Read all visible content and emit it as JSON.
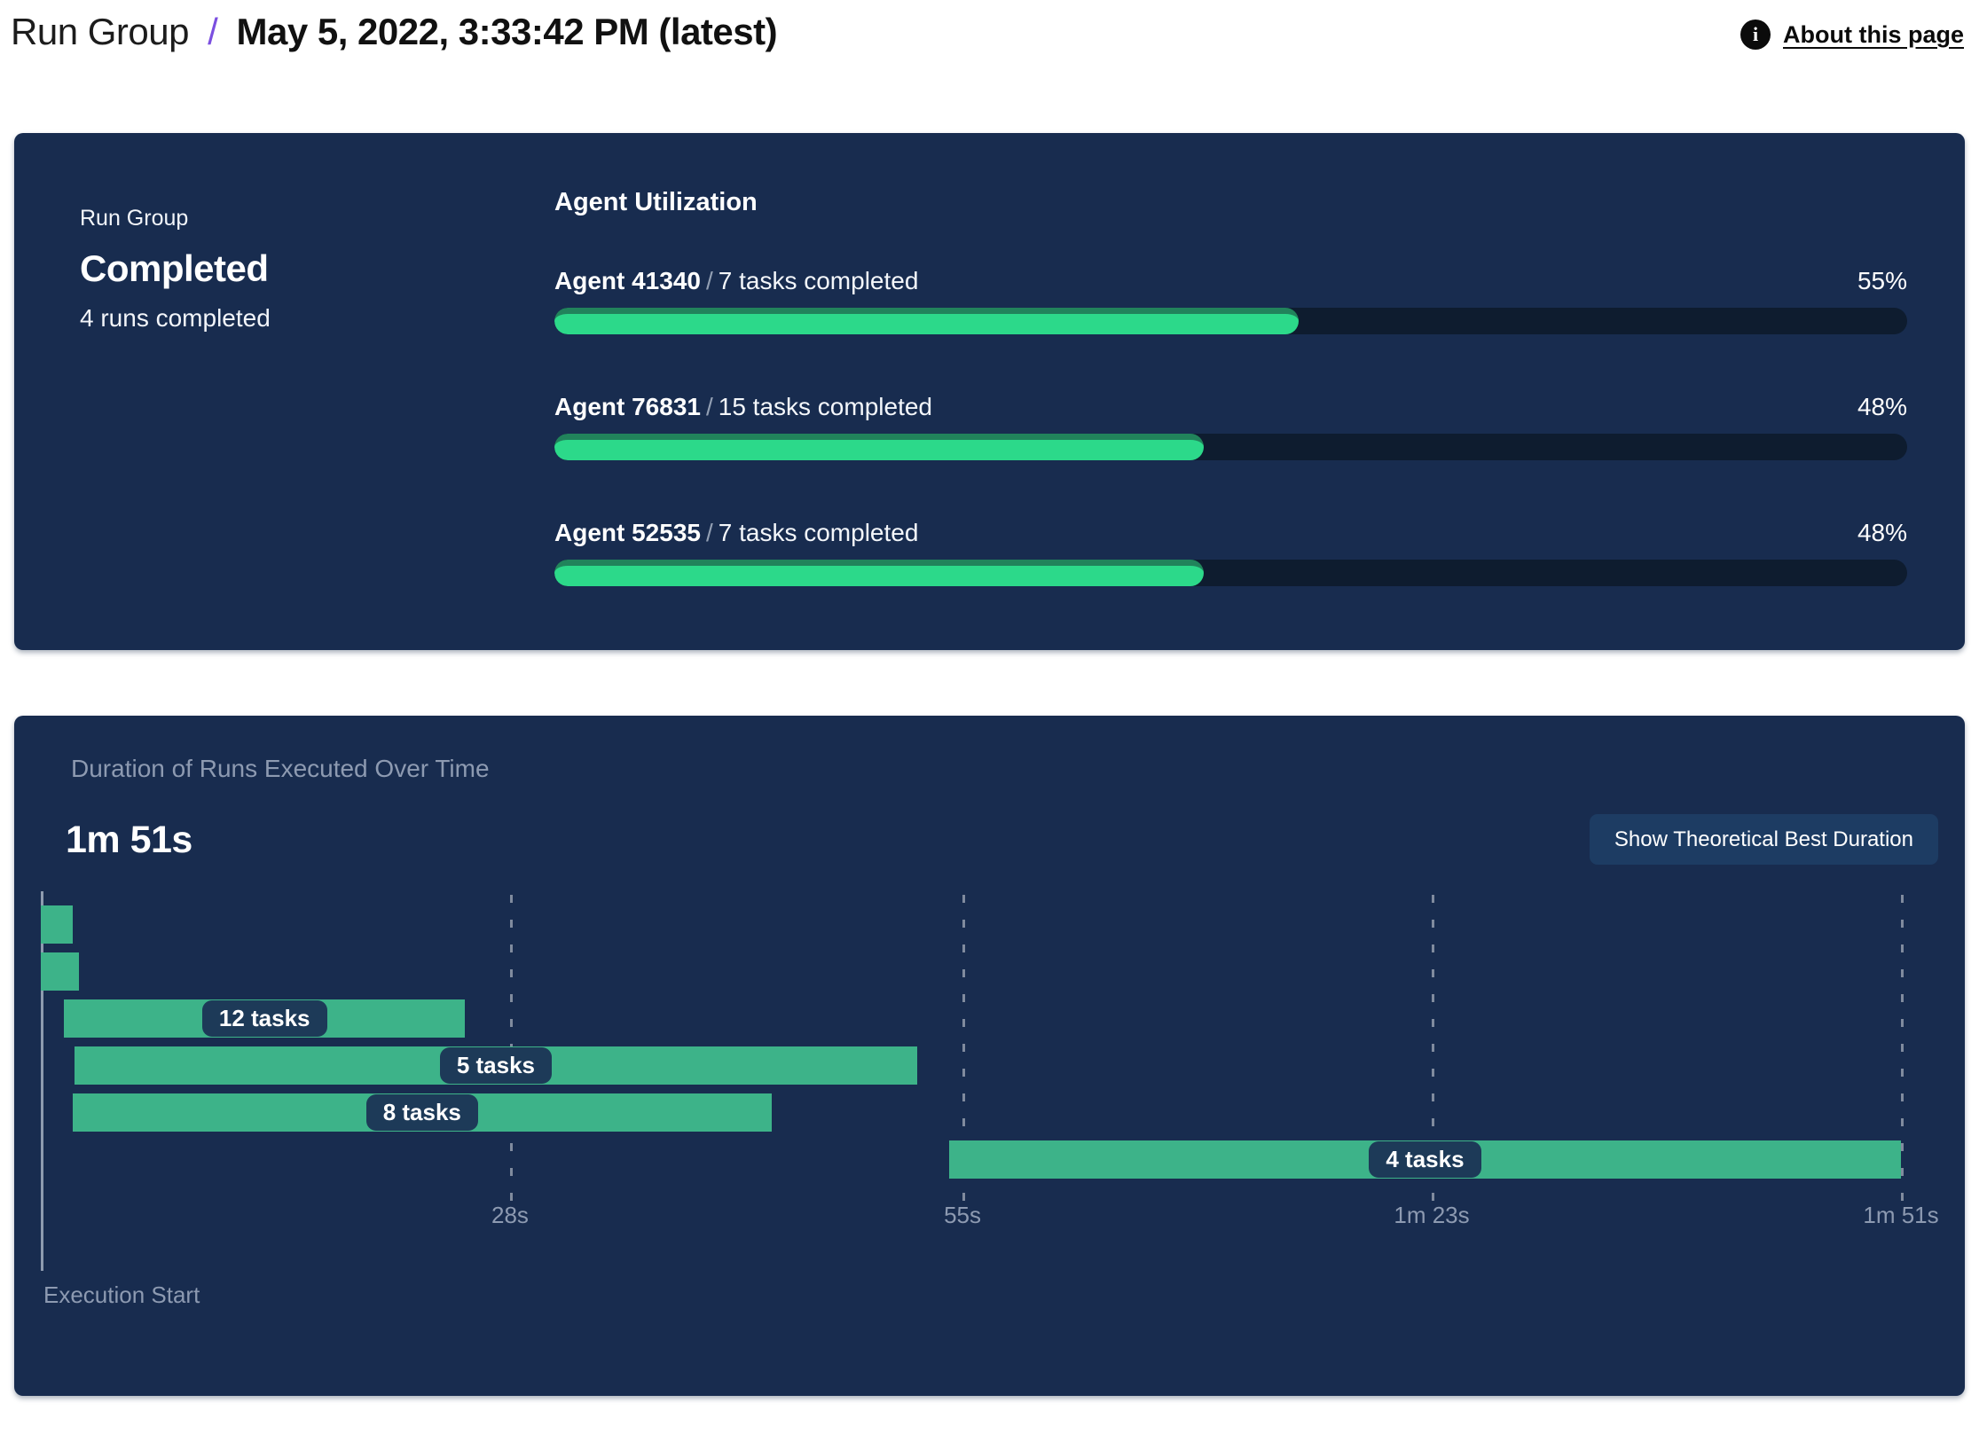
{
  "header": {
    "breadcrumb": "Run Group",
    "separator": "/",
    "title": "May 5, 2022, 3:33:42 PM (latest)",
    "about_label": "About this page",
    "info_icon_glyph": "i"
  },
  "run_group_panel": {
    "eyebrow": "Run Group",
    "status": "Completed",
    "subtitle": "4 runs completed",
    "utilization_title": "Agent Utilization",
    "agents": [
      {
        "name": "Agent 41340",
        "sep": "/",
        "detail": "7 tasks completed",
        "percent_label": "55%",
        "percent": 55
      },
      {
        "name": "Agent 76831",
        "sep": "/",
        "detail": "15 tasks completed",
        "percent_label": "48%",
        "percent": 48
      },
      {
        "name": "Agent 52535",
        "sep": "/",
        "detail": "7 tasks completed",
        "percent_label": "48%",
        "percent": 48
      }
    ]
  },
  "duration_panel": {
    "title": "Duration of Runs Executed Over Time",
    "total_duration": "1m 51s",
    "button_label": "Show Theoretical Best Duration",
    "execution_start_label": "Execution Start"
  },
  "colors": {
    "panel_bg": "#182C4F",
    "progress_green": "#2CD98A",
    "progress_green_edge": "#21835B",
    "gantt_green": "#3DB389",
    "track_bg": "#0E1C2F",
    "button_bg": "#1D3C63",
    "pill_bg": "#1D3A58",
    "muted_text": "#8D9AB1",
    "breadcrumb_separator_purple": "#7B4FE0"
  },
  "chart_data": [
    {
      "type": "bar",
      "title": "Agent Utilization",
      "orientation": "horizontal",
      "categories": [
        "Agent 41340",
        "Agent 76831",
        "Agent 52535"
      ],
      "values": [
        55,
        48,
        48
      ],
      "value_labels": [
        "55%",
        "48%",
        "48%"
      ],
      "tasks_completed": [
        7,
        15,
        7
      ],
      "xlim": [
        0,
        100
      ],
      "unit": "percent"
    },
    {
      "type": "bar",
      "variant": "gantt",
      "title": "Duration of Runs Executed Over Time",
      "total_duration_label": "1m 51s",
      "x_unit": "seconds",
      "xlim": [
        0,
        111
      ],
      "x_axis_label": "Execution Start",
      "x_ticks": [
        {
          "label": "28s",
          "s": 28
        },
        {
          "label": "55s",
          "s": 55
        },
        {
          "label": "1m 23s",
          "s": 83
        },
        {
          "label": "1m 51s",
          "s": 111
        }
      ],
      "bars": [
        {
          "label": "",
          "start_s": 0,
          "end_s": 1.9
        },
        {
          "label": "",
          "start_s": 0,
          "end_s": 2.3
        },
        {
          "label": "12 tasks",
          "start_s": 1.4,
          "end_s": 25.3
        },
        {
          "label": "5 tasks",
          "start_s": 2.0,
          "end_s": 52.3
        },
        {
          "label": "8 tasks",
          "start_s": 1.9,
          "end_s": 43.6
        },
        {
          "label": "4 tasks",
          "start_s": 54.2,
          "end_s": 111
        }
      ]
    }
  ]
}
